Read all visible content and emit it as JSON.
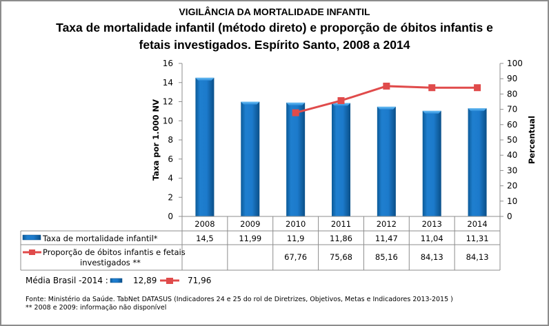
{
  "header": {
    "supertitle": "VIGILÂNCIA DA MORTALIDADE INFANTIL",
    "title_line1": "Taxa de mortalidade infantil (método direto) e proporção de óbitos infantis e",
    "title_line2": "fetais investigados. Espírito Santo, 2008 a 2014"
  },
  "chart_data": {
    "type": "bar",
    "title": "Taxa de mortalidade infantil (método direto) e proporção de óbitos infantis e fetais investigados. Espírito Santo, 2008 a 2014",
    "categories": [
      "2008",
      "2009",
      "2010",
      "2011",
      "2012",
      "2013",
      "2014"
    ],
    "ylabel": "Taxa  por 1.000 NV",
    "y2label": "Percentual",
    "ylim": [
      0,
      16
    ],
    "y2lim": [
      0,
      100
    ],
    "yticks": [
      "0",
      "2",
      "4",
      "6",
      "8",
      "10",
      "12",
      "14",
      "16"
    ],
    "y2ticks": [
      "0",
      "10",
      "20",
      "30",
      "40",
      "50",
      "60",
      "70",
      "80",
      "90",
      "100"
    ],
    "series": [
      {
        "name": "Taxa de mortalidade infantil*",
        "type": "bar",
        "axis": "left",
        "color": "#1f78c8",
        "values": [
          14.5,
          11.99,
          11.9,
          11.86,
          11.47,
          11.04,
          11.31
        ],
        "labels": [
          "14,5",
          "11,99",
          "11,9",
          "11,86",
          "11,47",
          "11,04",
          "11,31"
        ]
      },
      {
        "name": "Proporção de óbitos infantis e fetais investigados **",
        "name_line1": "Proporção de óbitos infantis e fetais",
        "name_line2": "investigados **",
        "type": "line",
        "axis": "right",
        "color": "#e04b4b",
        "values": [
          null,
          null,
          67.76,
          75.68,
          85.16,
          84.13,
          84.13
        ],
        "labels": [
          "",
          "",
          "67,76",
          "75,68",
          "85,16",
          "84,13",
          "84,13"
        ]
      }
    ],
    "legend": "data-table-bottom",
    "grid": false
  },
  "footer": {
    "media_label": "Média Brasil -2014 :",
    "media_bar_value": "12,89",
    "media_line_value": "71,96",
    "source": "Fonte: Ministério da Saúde. TabNet DATASUS (Indicadores 24 e 25 do rol de Diretrizes, Objetivos, Metas e Indicadores 2013-2015 )",
    "note": "** 2008 e 2009: informação não disponível"
  }
}
